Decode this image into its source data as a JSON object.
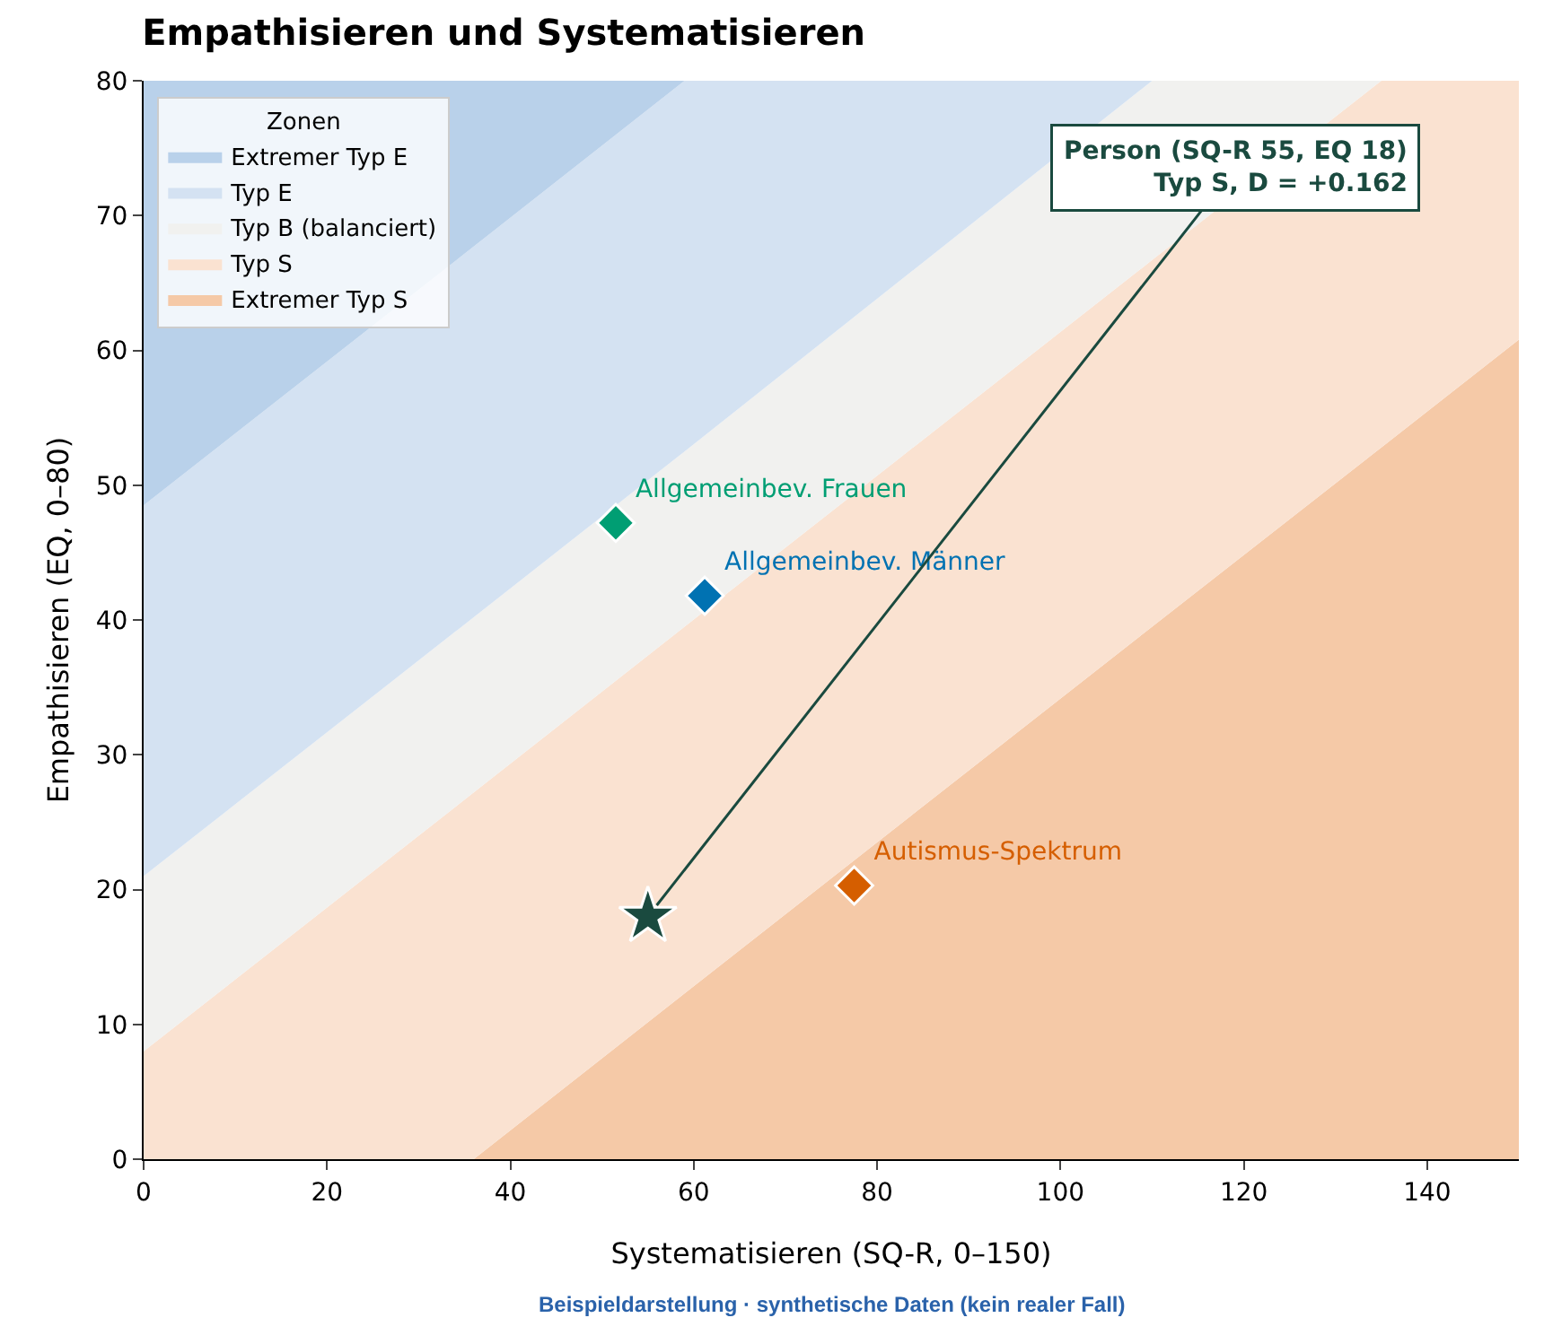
{
  "chart_data": {
    "type": "scatter",
    "title": "Empathisieren und Systematisieren",
    "xlabel": "Systematisieren (SQ-R, 0–150)",
    "ylabel": "Empathisieren (EQ, 0–80)",
    "legend_title": "Zonen",
    "xlim": [
      0,
      150
    ],
    "xticks": [
      0,
      20,
      40,
      60,
      80,
      100,
      120,
      140
    ],
    "ylim": [
      0,
      80
    ],
    "yticks": [
      0,
      10,
      20,
      30,
      40,
      50,
      60,
      70,
      80
    ],
    "legend": "top left",
    "series": [
      {
        "type": "area",
        "name": "Extremer Typ E",
        "color": "#b9d1ea",
        "x": [
          0,
          36,
          59,
          110,
          135,
          150
        ],
        "values": [
          80,
          80,
          80,
          80,
          80,
          80
        ]
      },
      {
        "type": "area",
        "name": "Typ E",
        "color": "#d4e2f2",
        "x": [
          0,
          36,
          59,
          110,
          135,
          150
        ],
        "values": [
          48.5,
          67.7,
          80,
          80,
          80,
          80
        ]
      },
      {
        "type": "area",
        "name": "Typ B (balanciert)",
        "color": "#f1f1ef",
        "x": [
          0,
          36,
          59,
          110,
          135,
          150
        ],
        "values": [
          21,
          40.2,
          52.5,
          80,
          80,
          80
        ]
      },
      {
        "type": "area",
        "name": "Typ S",
        "color": "#fae2d1",
        "x": [
          0,
          36,
          59,
          110,
          135,
          150
        ],
        "values": [
          8,
          27.2,
          39.5,
          66.7,
          80,
          80
        ]
      },
      {
        "type": "area",
        "name": "Extremer Typ S",
        "color": "#f5c9a7",
        "x": [
          0,
          36,
          59,
          110,
          135,
          150
        ],
        "values": [
          0,
          0,
          12.3,
          39.5,
          52.8,
          60.8
        ]
      },
      {
        "name": "Allgemeinbev. Frauen",
        "color": "#009e73",
        "marker": "diamond",
        "x": [
          51.5
        ],
        "values": [
          47.2
        ]
      },
      {
        "name": "Allgemeinbev. Männer",
        "color": "#0072b2",
        "marker": "diamond",
        "x": [
          61.2
        ],
        "values": [
          41.8
        ]
      },
      {
        "name": "Autismus-Spektrum",
        "color": "#d55e00",
        "marker": "diamond",
        "x": [
          77.5
        ],
        "values": [
          20.3
        ]
      },
      {
        "color": "#1a4a3f",
        "marker": "star",
        "x": [
          55
        ],
        "values": [
          18
        ]
      }
    ],
    "annotations": [
      {
        "text": "Person (SQ-R 55, EQ 18)\nTyp S, D = +0.162",
        "x": 55,
        "y": 18
      },
      "Beispieldarstellung · synthetische Daten (kein realer Fall)"
    ]
  }
}
